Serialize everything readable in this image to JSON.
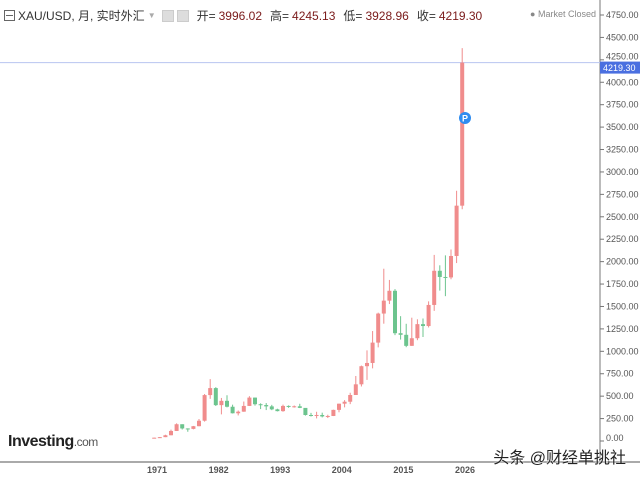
{
  "header": {
    "symbol": "XAU/USD, 月, 实时外汇",
    "open_label": "开=",
    "open": "3996.02",
    "high_label": "高=",
    "high": "4245.13",
    "low_label": "低=",
    "low": "3928.96",
    "close_label": "收=",
    "close": "4219.30",
    "market_status": "Market Closed"
  },
  "logo": {
    "main": "Investing",
    "suffix": ".com"
  },
  "watermark": "头条 @财经单挑社",
  "marker_label": "P",
  "colors": {
    "up": "#f08c8c",
    "down": "#6cc48e",
    "last_price": "#4a6fe0"
  },
  "chart_data": {
    "type": "candlestick",
    "title": "XAU/USD, 月, 实时外汇",
    "ylim": [
      0,
      4800
    ],
    "y_ticks": [
      "4750.00",
      "4500.00",
      "4250.00",
      "4000.00",
      "3750.00",
      "3500.00",
      "3250.00",
      "3000.00",
      "2750.00",
      "2500.00",
      "2250.00",
      "2000.00",
      "1750.00",
      "1500.00",
      "1250.00",
      "1000.00",
      "750.00",
      "500.00",
      "250.00",
      "0.00"
    ],
    "x_ticks": [
      "1971",
      "1982",
      "1993",
      "2004",
      "2015",
      "2026"
    ],
    "last_price": "4219.30",
    "columns": [
      "year",
      "open",
      "high",
      "low",
      "close"
    ],
    "candles": [
      [
        1970,
        35,
        39,
        35,
        37
      ],
      [
        1971,
        37,
        44,
        37,
        43
      ],
      [
        1972,
        43,
        70,
        43,
        64
      ],
      [
        1973,
        64,
        127,
        64,
        112
      ],
      [
        1974,
        112,
        197,
        112,
        187
      ],
      [
        1975,
        187,
        186,
        128,
        140
      ],
      [
        1976,
        140,
        141,
        103,
        135
      ],
      [
        1977,
        135,
        168,
        130,
        165
      ],
      [
        1978,
        165,
        245,
        165,
        226
      ],
      [
        1979,
        226,
        524,
        216,
        512
      ],
      [
        1980,
        512,
        690,
        470,
        590
      ],
      [
        1981,
        590,
        600,
        390,
        400
      ],
      [
        1982,
        400,
        480,
        297,
        448
      ],
      [
        1983,
        448,
        510,
        375,
        382
      ],
      [
        1984,
        382,
        405,
        307,
        309
      ],
      [
        1985,
        309,
        340,
        285,
        327
      ],
      [
        1986,
        327,
        440,
        326,
        391
      ],
      [
        1987,
        391,
        500,
        390,
        484
      ],
      [
        1988,
        484,
        485,
        395,
        410
      ],
      [
        1989,
        410,
        420,
        356,
        401
      ],
      [
        1990,
        401,
        423,
        345,
        386
      ],
      [
        1991,
        386,
        403,
        344,
        353
      ],
      [
        1992,
        353,
        360,
        330,
        333
      ],
      [
        1993,
        333,
        406,
        326,
        391
      ],
      [
        1994,
        391,
        397,
        370,
        383
      ],
      [
        1995,
        383,
        396,
        372,
        387
      ],
      [
        1996,
        387,
        415,
        367,
        369
      ],
      [
        1997,
        369,
        367,
        283,
        290
      ],
      [
        1998,
        290,
        313,
        273,
        288
      ],
      [
        1999,
        288,
        326,
        252,
        290
      ],
      [
        2000,
        290,
        316,
        263,
        274
      ],
      [
        2001,
        274,
        293,
        256,
        279
      ],
      [
        2002,
        279,
        349,
        278,
        347
      ],
      [
        2003,
        347,
        417,
        320,
        416
      ],
      [
        2004,
        416,
        456,
        375,
        438
      ],
      [
        2005,
        438,
        538,
        411,
        513
      ],
      [
        2006,
        513,
        725,
        513,
        632
      ],
      [
        2007,
        632,
        841,
        608,
        834
      ],
      [
        2008,
        834,
        1011,
        681,
        870
      ],
      [
        2009,
        870,
        1226,
        810,
        1097
      ],
      [
        2010,
        1097,
        1431,
        1044,
        1421
      ],
      [
        2011,
        1421,
        1921,
        1308,
        1565
      ],
      [
        2012,
        1565,
        1796,
        1527,
        1675
      ],
      [
        2013,
        1675,
        1694,
        1180,
        1202
      ],
      [
        2014,
        1202,
        1392,
        1131,
        1184
      ],
      [
        2015,
        1184,
        1307,
        1046,
        1061
      ],
      [
        2016,
        1061,
        1375,
        1061,
        1146
      ],
      [
        2017,
        1146,
        1357,
        1124,
        1303
      ],
      [
        2018,
        1303,
        1366,
        1160,
        1282
      ],
      [
        2019,
        1282,
        1557,
        1266,
        1517
      ],
      [
        2020,
        1517,
        2075,
        1451,
        1898
      ],
      [
        2021,
        1898,
        1959,
        1677,
        1829
      ],
      [
        2022,
        1829,
        2070,
        1615,
        1824
      ],
      [
        2023,
        1824,
        2135,
        1804,
        2063
      ],
      [
        2024,
        2063,
        2790,
        1984,
        2624
      ],
      [
        2025,
        2624,
        4381,
        2584,
        4219.3
      ]
    ]
  }
}
